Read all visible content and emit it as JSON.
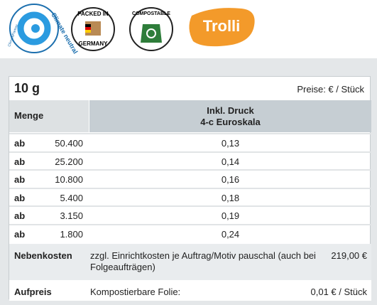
{
  "logos": {
    "climate": "Climate neutral",
    "climate_partner": "ClimatePartner",
    "packed_top": "PACKED IN",
    "packed_bottom": "GERMANY",
    "compostable": "COMPOSTABLE",
    "brand": "Trolli"
  },
  "table": {
    "title": "10 g",
    "price_note": "Preise: € / Stück",
    "header": {
      "quantity": "Menge",
      "print": [
        "Inkl. Druck",
        "4-c Euroskala"
      ]
    },
    "rows": [
      [
        "ab",
        "50.400",
        "0,13"
      ],
      [
        "ab",
        "25.200",
        "0,14"
      ],
      [
        "ab",
        "10.800",
        "0,16"
      ],
      [
        "ab",
        "5.400",
        "0,18"
      ],
      [
        "ab",
        "3.150",
        "0,19"
      ],
      [
        "ab",
        "1.800",
        "0,24"
      ]
    ],
    "extras": [
      {
        "label": "Nebenkosten",
        "text": "zzgl. Einrichtkosten je Auftrag/Motiv pauschal (auch bei Folgeaufträgen)",
        "value": "219,00 €"
      },
      {
        "label": "Aufpreis",
        "text": "Kompostierbare Folie:",
        "value": "0,01 € / Stück"
      }
    ]
  }
}
